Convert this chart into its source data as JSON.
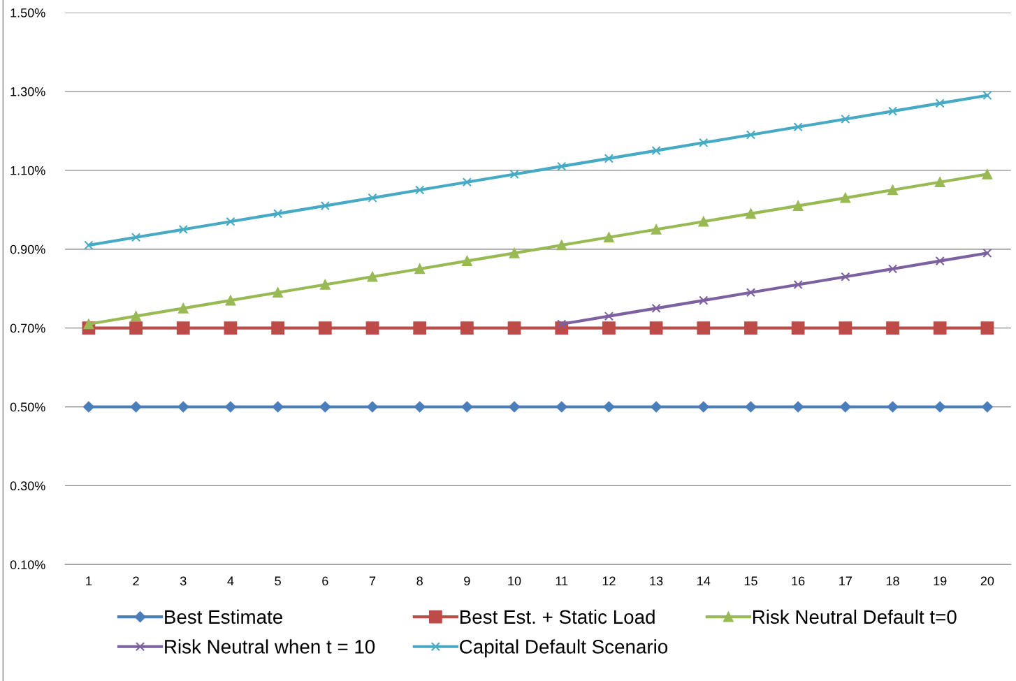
{
  "chart_data": {
    "type": "line",
    "categories": [
      "1",
      "2",
      "3",
      "4",
      "5",
      "6",
      "7",
      "8",
      "9",
      "10",
      "11",
      "12",
      "13",
      "14",
      "15",
      "16",
      "17",
      "18",
      "19",
      "20"
    ],
    "series": [
      {
        "name": "Best Estimate",
        "color": "#4a7ebb",
        "marker": "diamond",
        "values": [
          0.5,
          0.5,
          0.5,
          0.5,
          0.5,
          0.5,
          0.5,
          0.5,
          0.5,
          0.5,
          0.5,
          0.5,
          0.5,
          0.5,
          0.5,
          0.5,
          0.5,
          0.5,
          0.5,
          0.5
        ]
      },
      {
        "name": "Best Est. + Static Load",
        "color": "#be4b48",
        "marker": "square",
        "values": [
          0.7,
          0.7,
          0.7,
          0.7,
          0.7,
          0.7,
          0.7,
          0.7,
          0.7,
          0.7,
          0.7,
          0.7,
          0.7,
          0.7,
          0.7,
          0.7,
          0.7,
          0.7,
          0.7,
          0.7
        ]
      },
      {
        "name": "Risk Neutral Default t=0",
        "color": "#98b954",
        "marker": "triangle",
        "values": [
          0.71,
          0.73,
          0.75,
          0.77,
          0.79,
          0.81,
          0.83,
          0.85,
          0.87,
          0.89,
          0.91,
          0.93,
          0.95,
          0.97,
          0.99,
          1.01,
          1.03,
          1.05,
          1.07,
          1.09
        ]
      },
      {
        "name": "Risk Neutral when t = 10",
        "color": "#7d60a0",
        "marker": "cross",
        "values": [
          null,
          null,
          null,
          null,
          null,
          null,
          null,
          null,
          null,
          null,
          0.71,
          0.73,
          0.75,
          0.77,
          0.79,
          0.81,
          0.83,
          0.85,
          0.87,
          0.89
        ]
      },
      {
        "name": "Capital Default Scenario",
        "color": "#46aac5",
        "marker": "cross",
        "values": [
          0.91,
          0.93,
          0.95,
          0.97,
          0.99,
          1.01,
          1.03,
          1.05,
          1.07,
          1.09,
          1.11,
          1.13,
          1.15,
          1.17,
          1.19,
          1.21,
          1.23,
          1.25,
          1.27,
          1.29
        ]
      }
    ],
    "ylim": [
      0.1,
      1.5
    ],
    "yticks": [
      {
        "value": 0.1,
        "label": "0.10%"
      },
      {
        "value": 0.3,
        "label": "0.30%"
      },
      {
        "value": 0.5,
        "label": "0.50%"
      },
      {
        "value": 0.7,
        "label": "0.70%"
      },
      {
        "value": 0.9,
        "label": "0.90%"
      },
      {
        "value": 1.1,
        "label": "1.10%"
      },
      {
        "value": 1.3,
        "label": "1.30%"
      },
      {
        "value": 1.5,
        "label": "1.50%"
      }
    ],
    "grid": "y",
    "legend": "bottom",
    "line_style": "solid"
  }
}
